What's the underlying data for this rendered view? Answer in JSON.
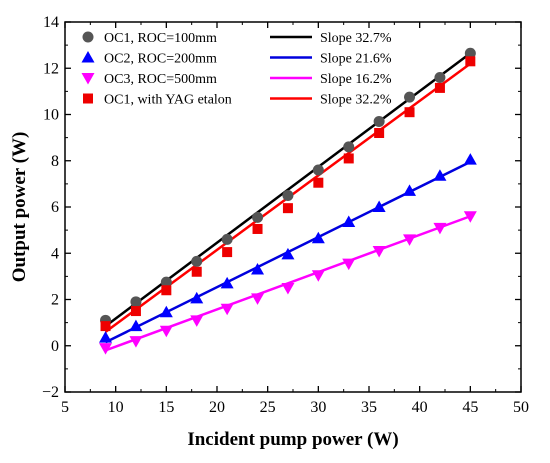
{
  "chart_data": {
    "type": "scatter",
    "xlabel": "Incident pump power (W)",
    "ylabel": "Output power (W)",
    "xlim": [
      5,
      50
    ],
    "ylim": [
      -2,
      14
    ],
    "xticks": [
      "5",
      "10",
      "15",
      "20",
      "25",
      "30",
      "35",
      "40",
      "45",
      "50"
    ],
    "yticks": [
      "−2",
      "0",
      "2",
      "4",
      "6",
      "8",
      "10",
      "12",
      "14"
    ],
    "grid": false,
    "legend_position": "top-left",
    "series": [
      {
        "name": "OC1, ROC=100mm",
        "marker": "circle",
        "color": "#555555",
        "x": [
          9,
          12,
          15,
          18,
          21,
          24,
          27,
          30,
          33,
          36,
          39,
          42,
          45
        ],
        "y": [
          1.1,
          1.9,
          2.75,
          3.65,
          4.6,
          5.55,
          6.5,
          7.6,
          8.6,
          9.7,
          10.75,
          11.6,
          12.65
        ]
      },
      {
        "name": "OC2, ROC=200mm",
        "marker": "triangle-up",
        "color": "#0000ff",
        "x": [
          9,
          12,
          15,
          18,
          21,
          24,
          27,
          30,
          33,
          36,
          39,
          42,
          45
        ],
        "y": [
          0.35,
          0.85,
          1.45,
          2.05,
          2.7,
          3.3,
          3.95,
          4.65,
          5.35,
          6.0,
          6.7,
          7.35,
          8.05
        ]
      },
      {
        "name": "OC3, ROC=500mm",
        "marker": "triangle-down",
        "color": "#ff00ff",
        "x": [
          9,
          12,
          15,
          18,
          21,
          24,
          27,
          30,
          33,
          36,
          39,
          42,
          45
        ],
        "y": [
          -0.1,
          0.2,
          0.65,
          1.1,
          1.6,
          2.05,
          2.5,
          3.05,
          3.55,
          4.1,
          4.6,
          5.1,
          5.6
        ]
      },
      {
        "name": "OC1, with YAG etalon",
        "marker": "square",
        "color": "#ee0000",
        "x": [
          9,
          12,
          15,
          18,
          21,
          24,
          27,
          30,
          33,
          36,
          39,
          42,
          45
        ],
        "y": [
          0.85,
          1.5,
          2.4,
          3.2,
          4.05,
          5.05,
          5.95,
          7.05,
          8.1,
          9.2,
          10.1,
          11.15,
          12.3
        ]
      }
    ],
    "fits": [
      {
        "name": "Slope 32.7%",
        "color": "#000000",
        "x": [
          9,
          45
        ],
        "y": [
          0.85,
          12.65
        ]
      },
      {
        "name": "Slope 21.6%",
        "color": "#0000dd",
        "x": [
          9,
          45
        ],
        "y": [
          0.15,
          7.95
        ]
      },
      {
        "name": "Slope 16.2%",
        "color": "#ff00ff",
        "x": [
          9,
          45
        ],
        "y": [
          -0.2,
          5.6
        ]
      },
      {
        "name": "Slope 32.2%",
        "color": "#ff0000",
        "x": [
          9,
          45
        ],
        "y": [
          0.6,
          12.2
        ]
      }
    ]
  }
}
